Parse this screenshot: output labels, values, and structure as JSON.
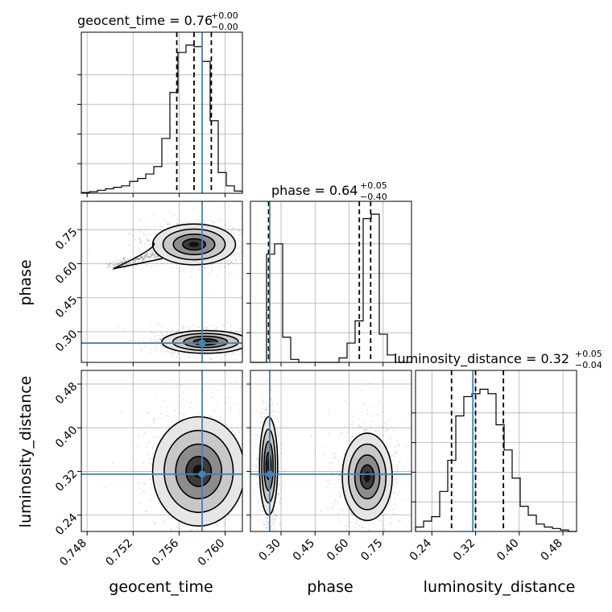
{
  "chart_data": {
    "type": "corner",
    "parameters": [
      "geocent_time",
      "phase",
      "luminosity_distance"
    ],
    "axes": {
      "geocent_time": {
        "range": [
          0.7475,
          0.7615
        ],
        "ticks": [
          0.748,
          0.752,
          0.756,
          0.76
        ],
        "tick_labels": [
          "0.748",
          "0.752",
          "0.756",
          "0.760"
        ]
      },
      "phase": {
        "range": [
          0.165,
          0.875
        ],
        "ticks": [
          0.3,
          0.45,
          0.6,
          0.75
        ],
        "tick_labels": [
          "0.30",
          "0.45",
          "0.60",
          "0.75"
        ]
      },
      "luminosity_distance": {
        "range": [
          0.21,
          0.505
        ],
        "ticks": [
          0.24,
          0.32,
          0.4,
          0.48
        ],
        "tick_labels": [
          "0.24",
          "0.32",
          "0.40",
          "0.48"
        ]
      }
    },
    "titles": [
      {
        "param": "geocent_time",
        "label": "geocent_time",
        "median": "0.76",
        "plus": "+0.00",
        "minus": "−0.00"
      },
      {
        "param": "phase",
        "label": "phase",
        "median": "0.64",
        "plus": "+0.05",
        "minus": "−0.40"
      },
      {
        "param": "luminosity_distance",
        "label": "luminosity_distance",
        "median": "0.32",
        "plus": "+0.05",
        "minus": "−0.04"
      }
    ],
    "truth": {
      "geocent_time": 0.758,
      "phase": 0.25,
      "luminosity_distance": 0.315
    },
    "quantiles": {
      "geocent_time": [
        0.7558,
        0.7573,
        0.7588
      ],
      "phase": [
        0.245,
        0.645,
        0.695
      ],
      "luminosity_distance": [
        0.276,
        0.32,
        0.371
      ]
    },
    "histograms": {
      "geocent_time": {
        "bins": [
          0.7475,
          0.7482,
          0.7489,
          0.7496,
          0.7503,
          0.751,
          0.7517,
          0.7524,
          0.7531,
          0.7538,
          0.7545,
          0.7552,
          0.7559,
          0.7566,
          0.7573,
          0.758,
          0.7587,
          0.7594,
          0.7601,
          0.7608,
          0.7615
        ],
        "counts": [
          0.005,
          0.01,
          0.02,
          0.03,
          0.04,
          0.05,
          0.08,
          0.1,
          0.13,
          0.18,
          0.37,
          0.68,
          0.95,
          1.0,
          0.99,
          0.89,
          0.49,
          0.14,
          0.05,
          0.015
        ]
      },
      "phase": {
        "bins": [
          0.165,
          0.2005,
          0.236,
          0.2715,
          0.307,
          0.3425,
          0.378,
          0.4135,
          0.449,
          0.4845,
          0.52,
          0.5555,
          0.591,
          0.6265,
          0.662,
          0.6975,
          0.733,
          0.7685,
          0.804,
          0.8395,
          0.875
        ],
        "counts": [
          0.0,
          0.0,
          0.73,
          0.8,
          0.17,
          0.02,
          0.0,
          0.0,
          0.0,
          0.0,
          0.0,
          0.03,
          0.13,
          0.28,
          0.97,
          1.0,
          0.19,
          0.05,
          0.0,
          0.0
        ]
      },
      "luminosity_distance": {
        "bins": [
          0.21,
          0.2248,
          0.2395,
          0.2543,
          0.269,
          0.2838,
          0.2985,
          0.3133,
          0.328,
          0.3428,
          0.3575,
          0.3723,
          0.387,
          0.4018,
          0.4165,
          0.4313,
          0.446,
          0.4608,
          0.4755,
          0.4903,
          0.505
        ],
        "counts": [
          0.03,
          0.07,
          0.1,
          0.27,
          0.48,
          0.78,
          0.91,
          0.93,
          0.96,
          0.93,
          0.72,
          0.55,
          0.36,
          0.17,
          0.11,
          0.05,
          0.03,
          0.02,
          0.01,
          0.0
        ]
      }
    },
    "pairs": [
      {
        "x": "geocent_time",
        "y": "phase",
        "clusters": [
          {
            "cx": 0.7573,
            "cy": 0.685,
            "sx": 0.0018,
            "sy": 0.045,
            "tail": {
              "x0": 0.75,
              "y0": 0.585,
              "x1": 0.7545,
              "y1": 0.65
            }
          },
          {
            "cx": 0.7583,
            "cy": 0.255,
            "sx": 0.0019,
            "sy": 0.025
          }
        ]
      },
      {
        "x": "geocent_time",
        "y": "luminosity_distance",
        "clusters": [
          {
            "cx": 0.7577,
            "cy": 0.32,
            "sx": 0.002,
            "sy": 0.05
          }
        ]
      },
      {
        "x": "phase",
        "y": "luminosity_distance",
        "clusters": [
          {
            "cx": 0.245,
            "cy": 0.33,
            "sx": 0.02,
            "sy": 0.045
          },
          {
            "cx": 0.68,
            "cy": 0.31,
            "sx": 0.055,
            "sy": 0.04
          }
        ]
      }
    ]
  }
}
